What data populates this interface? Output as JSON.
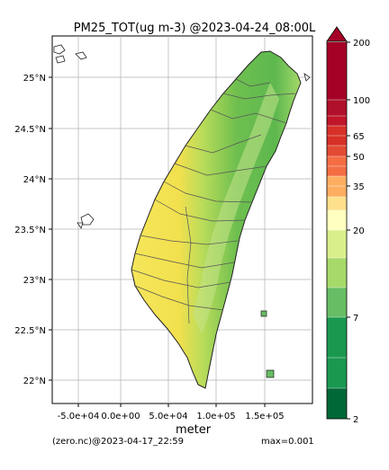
{
  "title": "PM25_TOT(ug m-3) @2023-04-24_08:00L",
  "xlabel": "meter",
  "footer_left": "(zero.nc)@2023-04-17_22:59",
  "footer_right": "max=0.001",
  "map": {
    "x_ticks": [
      "-5.0e+04",
      "0.0e+00",
      "5.0e+04",
      "1.0e+05",
      "1.5e+05"
    ],
    "y_ticks": [
      "25°N",
      "24.5°N",
      "24°N",
      "23.5°N",
      "23°N",
      "22.5°N",
      "22°N"
    ],
    "grid": true
  },
  "colorbar": {
    "labels": [
      "200",
      "100",
      "65",
      "50",
      "35",
      "20",
      "7",
      "2"
    ],
    "colors": [
      "#006837",
      "#1a9850",
      "#66bd63",
      "#a6d96a",
      "#d9ef8b",
      "#ffffbf",
      "#fee08b",
      "#fdae61",
      "#f46d43",
      "#d73027",
      "#a50026"
    ]
  }
}
